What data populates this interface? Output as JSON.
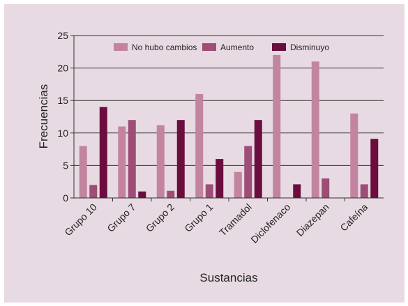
{
  "chart_data": {
    "type": "bar",
    "title": "",
    "xlabel": "Sustancias",
    "ylabel": "Frecuencias",
    "ylim": [
      0,
      25
    ],
    "yticks": [
      "0",
      "5",
      "10",
      "15",
      "20",
      "25"
    ],
    "grid": true,
    "legend_position": "top-right",
    "categories": [
      "Grupo 10",
      "Grupo 7",
      "Grupo 2",
      "Grupo 1",
      "Tramadol",
      "Diclofenaco",
      "Diazepan",
      "Cafeína"
    ],
    "series": [
      {
        "name": "No hubo cambios",
        "color": "#c2849f",
        "values": [
          8,
          11,
          11.2,
          16,
          4,
          22,
          21,
          13
        ]
      },
      {
        "name": "Aumento",
        "color": "#9e4e76",
        "values": [
          2,
          12,
          1.1,
          2.1,
          8,
          0,
          3,
          2.1
        ]
      },
      {
        "name": "Disminuyo",
        "color": "#6b0d3f",
        "values": [
          14,
          1,
          12,
          6,
          12,
          2.1,
          0,
          9.1
        ]
      }
    ]
  }
}
